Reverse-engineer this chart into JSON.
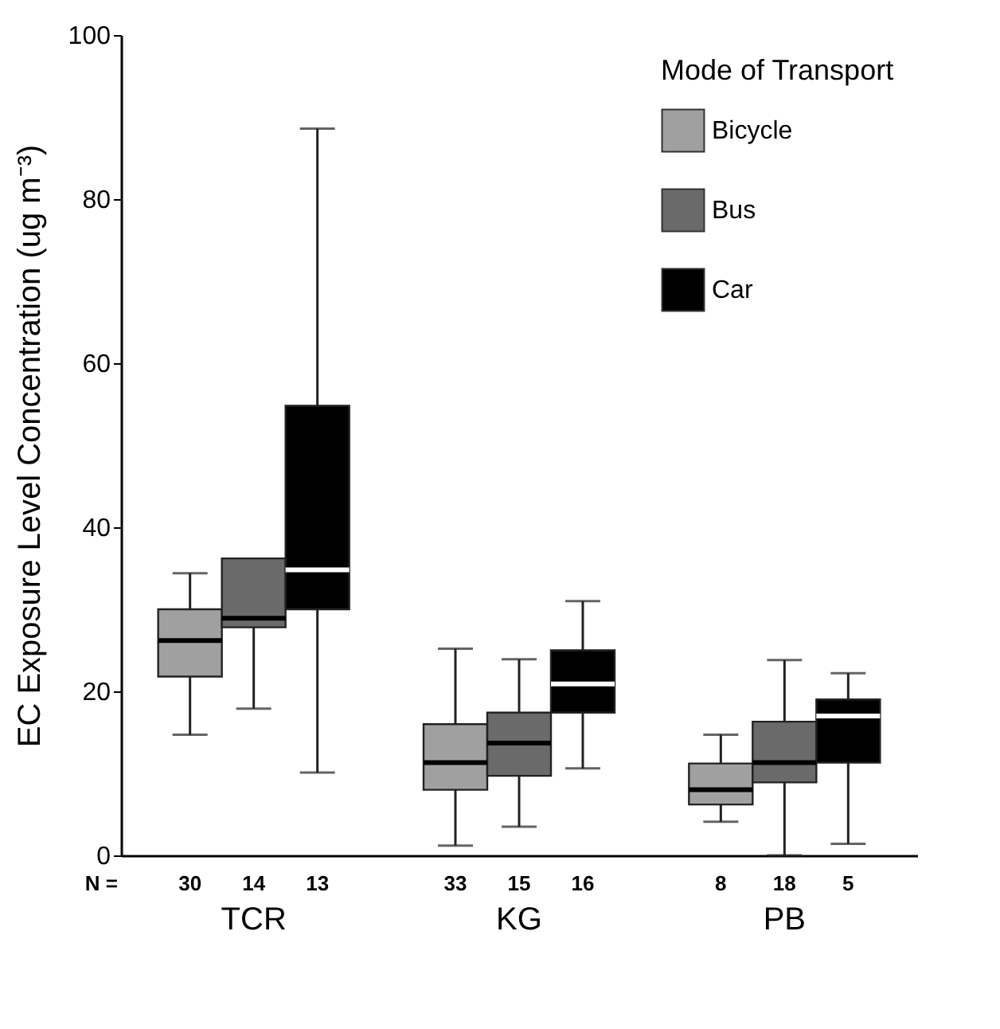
{
  "chart_data": {
    "type": "box",
    "ylabel": "EC Exposure Level Concentration (ug m⁻³)",
    "legend_title": "Mode of Transport",
    "legend": "top right",
    "categories": [
      "TCR",
      "KG",
      "PB"
    ],
    "ylim": [
      0,
      100
    ],
    "yticks": [
      0,
      20,
      40,
      60,
      80,
      100
    ],
    "annotations": [
      "N ="
    ],
    "series": [
      {
        "name": "Bicycle",
        "color": "#a0a0a0",
        "value_labels": [
          "30",
          "33",
          "8"
        ],
        "boxes": [
          {
            "low": 14.7,
            "q1": 21.8,
            "median": 26.2,
            "q3": 30,
            "high": 34.4
          },
          {
            "low": 1.2,
            "q1": 8,
            "median": 11.3,
            "q3": 16,
            "high": 25.2
          },
          {
            "low": 4.1,
            "q1": 6.2,
            "median": 8,
            "q3": 11.2,
            "high": 14.7
          }
        ]
      },
      {
        "name": "Bus",
        "color": "#6a6a6a",
        "value_labels": [
          "14",
          "15",
          "18"
        ],
        "boxes": [
          {
            "low": 17.9,
            "q1": 27.8,
            "median": 28.9,
            "q3": 36.2,
            "high": 36.2
          },
          {
            "low": 3.5,
            "q1": 9.7,
            "median": 13.7,
            "q3": 17.4,
            "high": 23.9
          },
          {
            "low": 0,
            "q1": 8.9,
            "median": 11.3,
            "q3": 16.3,
            "high": 23.8
          }
        ]
      },
      {
        "name": "Car",
        "color": "#000000",
        "value_labels": [
          "13",
          "16",
          "5"
        ],
        "boxes": [
          {
            "low": 10.1,
            "q1": 30,
            "median": 34.8,
            "q3": 54.8,
            "high": 88.6
          },
          {
            "low": 10.6,
            "q1": 17.4,
            "median": 20.9,
            "q3": 25,
            "high": 31
          },
          {
            "low": 1.4,
            "q1": 11.3,
            "median": 17,
            "q3": 19,
            "high": 22.2
          }
        ]
      }
    ]
  }
}
